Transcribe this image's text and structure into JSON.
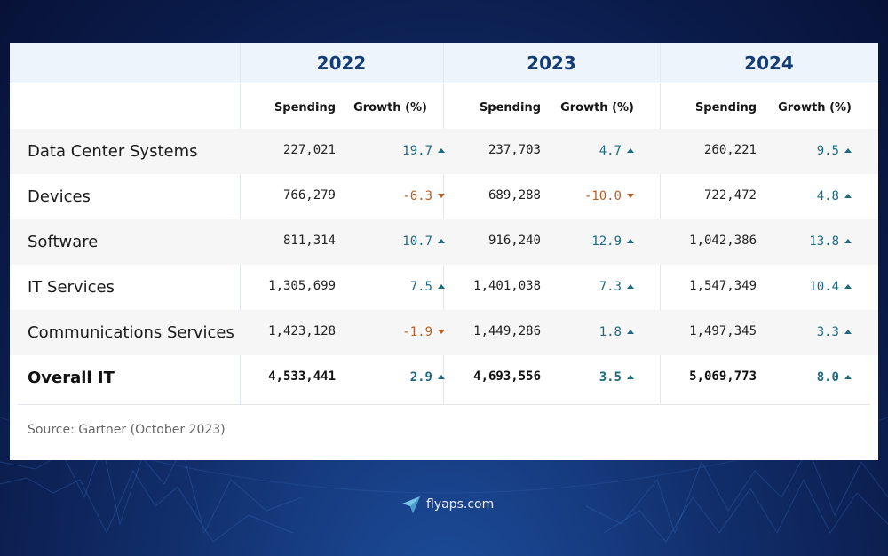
{
  "colors": {
    "positive": "#1d6a80",
    "negative": "#b5622a",
    "year_text": "#133c74",
    "header_bg": "#eef4fc"
  },
  "chart_data": {
    "type": "table",
    "years": [
      "2022",
      "2023",
      "2024"
    ],
    "subheaders": {
      "spending": "Spending",
      "growth": "Growth (%)"
    },
    "rows": [
      {
        "label": "Data Center Systems",
        "total": false,
        "cells": [
          {
            "spending": "227,021",
            "growth": "19.7",
            "dir": "up"
          },
          {
            "spending": "237,703",
            "growth": "4.7",
            "dir": "up"
          },
          {
            "spending": "260,221",
            "growth": "9.5",
            "dir": "up"
          }
        ]
      },
      {
        "label": "Devices",
        "total": false,
        "cells": [
          {
            "spending": "766,279",
            "growth": "-6.3",
            "dir": "down"
          },
          {
            "spending": "689,288",
            "growth": "-10.0",
            "dir": "down"
          },
          {
            "spending": "722,472",
            "growth": "4.8",
            "dir": "up"
          }
        ]
      },
      {
        "label": "Software",
        "total": false,
        "cells": [
          {
            "spending": "811,314",
            "growth": "10.7",
            "dir": "up"
          },
          {
            "spending": "916,240",
            "growth": "12.9",
            "dir": "up"
          },
          {
            "spending": "1,042,386",
            "growth": "13.8",
            "dir": "up"
          }
        ]
      },
      {
        "label": "IT Services",
        "total": false,
        "cells": [
          {
            "spending": "1,305,699",
            "growth": "7.5",
            "dir": "up"
          },
          {
            "spending": "1,401,038",
            "growth": "7.3",
            "dir": "up"
          },
          {
            "spending": "1,547,349",
            "growth": "10.4",
            "dir": "up"
          }
        ]
      },
      {
        "label": "Communications Services",
        "total": false,
        "cells": [
          {
            "spending": "1,423,128",
            "growth": "-1.9",
            "dir": "down"
          },
          {
            "spending": "1,449,286",
            "growth": "1.8",
            "dir": "up"
          },
          {
            "spending": "1,497,345",
            "growth": "3.3",
            "dir": "up"
          }
        ]
      },
      {
        "label": "Overall IT",
        "total": true,
        "cells": [
          {
            "spending": "4,533,441",
            "growth": "2.9",
            "dir": "up"
          },
          {
            "spending": "4,693,556",
            "growth": "3.5",
            "dir": "up"
          },
          {
            "spending": "5,069,773",
            "growth": "8.0",
            "dir": "up"
          }
        ]
      }
    ],
    "source": "Source: Gartner (October 2023)"
  },
  "brand": {
    "name": "flyaps.com",
    "icon": "paper-plane-icon"
  }
}
